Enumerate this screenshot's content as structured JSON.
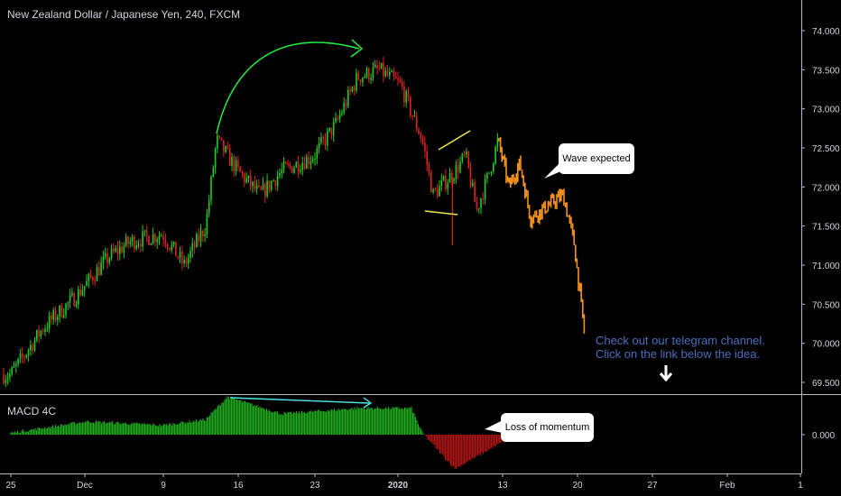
{
  "header": {
    "title": "New Zealand Dollar / Japanese Yen, 240, FXCM"
  },
  "indicator": {
    "label": "MACD 4C"
  },
  "annotations": {
    "wave_expected": "Wave expected",
    "loss_of_momentum": "Loss of momentum",
    "telegram_line1": "Check out our telegram channel.",
    "telegram_line2": "Click on the link below the idea.",
    "down_arrow": "down-arrow-icon"
  },
  "colors": {
    "background": "#000000",
    "up_candle": "#22cc22",
    "down_candle": "#e02020",
    "projection": "#f7931a",
    "macd_up": "#1faa1f",
    "macd_down": "#b01515",
    "trend_arrow": "#22ee44",
    "divergence_line": "#4ee8e8",
    "triangle_lines": "#f4e64a",
    "telegram_text": "#4a6fbf",
    "axis_text": "#d1d4dc"
  },
  "chart_data": [
    {
      "type": "candlestick",
      "title": "New Zealand Dollar / Japanese Yen, 240, FXCM",
      "y_axis": {
        "ticks": [
          "74.000",
          "73.500",
          "73.000",
          "72.500",
          "72.000",
          "71.500",
          "71.000",
          "70.500",
          "70.000",
          "69.500"
        ],
        "ylim": [
          69.4,
          74.2
        ],
        "position": "right"
      },
      "x_axis": {
        "ticks": [
          "25",
          "Dec",
          "9",
          "16",
          "23",
          "2020",
          "13",
          "20",
          "27",
          "Feb",
          "1"
        ]
      },
      "price_path": [
        {
          "date": "2019-11-25",
          "price": 69.6
        },
        {
          "date": "2019-11-28",
          "price": 70.2
        },
        {
          "date": "2019-12-01",
          "price": 70.6
        },
        {
          "date": "2019-12-04",
          "price": 71.1
        },
        {
          "date": "2019-12-06",
          "price": 71.3
        },
        {
          "date": "2019-12-09",
          "price": 71.4
        },
        {
          "date": "2019-12-11",
          "price": 71.0
        },
        {
          "date": "2019-12-13",
          "price": 71.5
        },
        {
          "date": "2019-12-14",
          "price": 72.6
        },
        {
          "date": "2019-12-16",
          "price": 72.2
        },
        {
          "date": "2019-12-18",
          "price": 71.9
        },
        {
          "date": "2019-12-20",
          "price": 72.2
        },
        {
          "date": "2019-12-23",
          "price": 72.4
        },
        {
          "date": "2019-12-25",
          "price": 72.8
        },
        {
          "date": "2019-12-27",
          "price": 73.4
        },
        {
          "date": "2019-12-29",
          "price": 73.5
        },
        {
          "date": "2019-12-31",
          "price": 73.3
        },
        {
          "date": "2020-01-02",
          "price": 72.6
        },
        {
          "date": "2020-01-03",
          "price": 71.9
        },
        {
          "date": "2020-01-05",
          "price": 72.2
        },
        {
          "date": "2020-01-06",
          "price": 72.4
        },
        {
          "date": "2020-01-07",
          "price": 71.7
        },
        {
          "date": "2020-01-08",
          "price": 72.1
        },
        {
          "date": "2020-01-09",
          "price": 72.6
        }
      ],
      "projection_path": [
        {
          "date": "2020-01-09",
          "price": 72.6
        },
        {
          "date": "2020-01-10",
          "price": 72.0
        },
        {
          "date": "2020-01-11",
          "price": 72.3
        },
        {
          "date": "2020-01-12",
          "price": 71.6
        },
        {
          "date": "2020-01-14",
          "price": 71.8
        },
        {
          "date": "2020-01-15",
          "price": 71.9
        },
        {
          "date": "2020-01-16",
          "price": 71.3
        },
        {
          "date": "2020-01-17",
          "price": 70.1
        }
      ]
    },
    {
      "type": "bar",
      "title": "MACD 4C",
      "y_axis": {
        "ticks": [
          "0.000"
        ]
      },
      "histogram_path": [
        {
          "date": "2019-11-25",
          "value": 0.05
        },
        {
          "date": "2019-12-02",
          "value": 0.35
        },
        {
          "date": "2019-12-09",
          "value": 0.25
        },
        {
          "date": "2019-12-13",
          "value": 0.4
        },
        {
          "date": "2019-12-15",
          "value": 1.0
        },
        {
          "date": "2019-12-20",
          "value": 0.55
        },
        {
          "date": "2019-12-27",
          "value": 0.7
        },
        {
          "date": "2020-01-01",
          "value": 0.7
        },
        {
          "date": "2020-01-02",
          "value": 0.05
        },
        {
          "date": "2020-01-05",
          "value": -0.9
        },
        {
          "date": "2020-01-10",
          "value": -0.1
        }
      ]
    }
  ]
}
